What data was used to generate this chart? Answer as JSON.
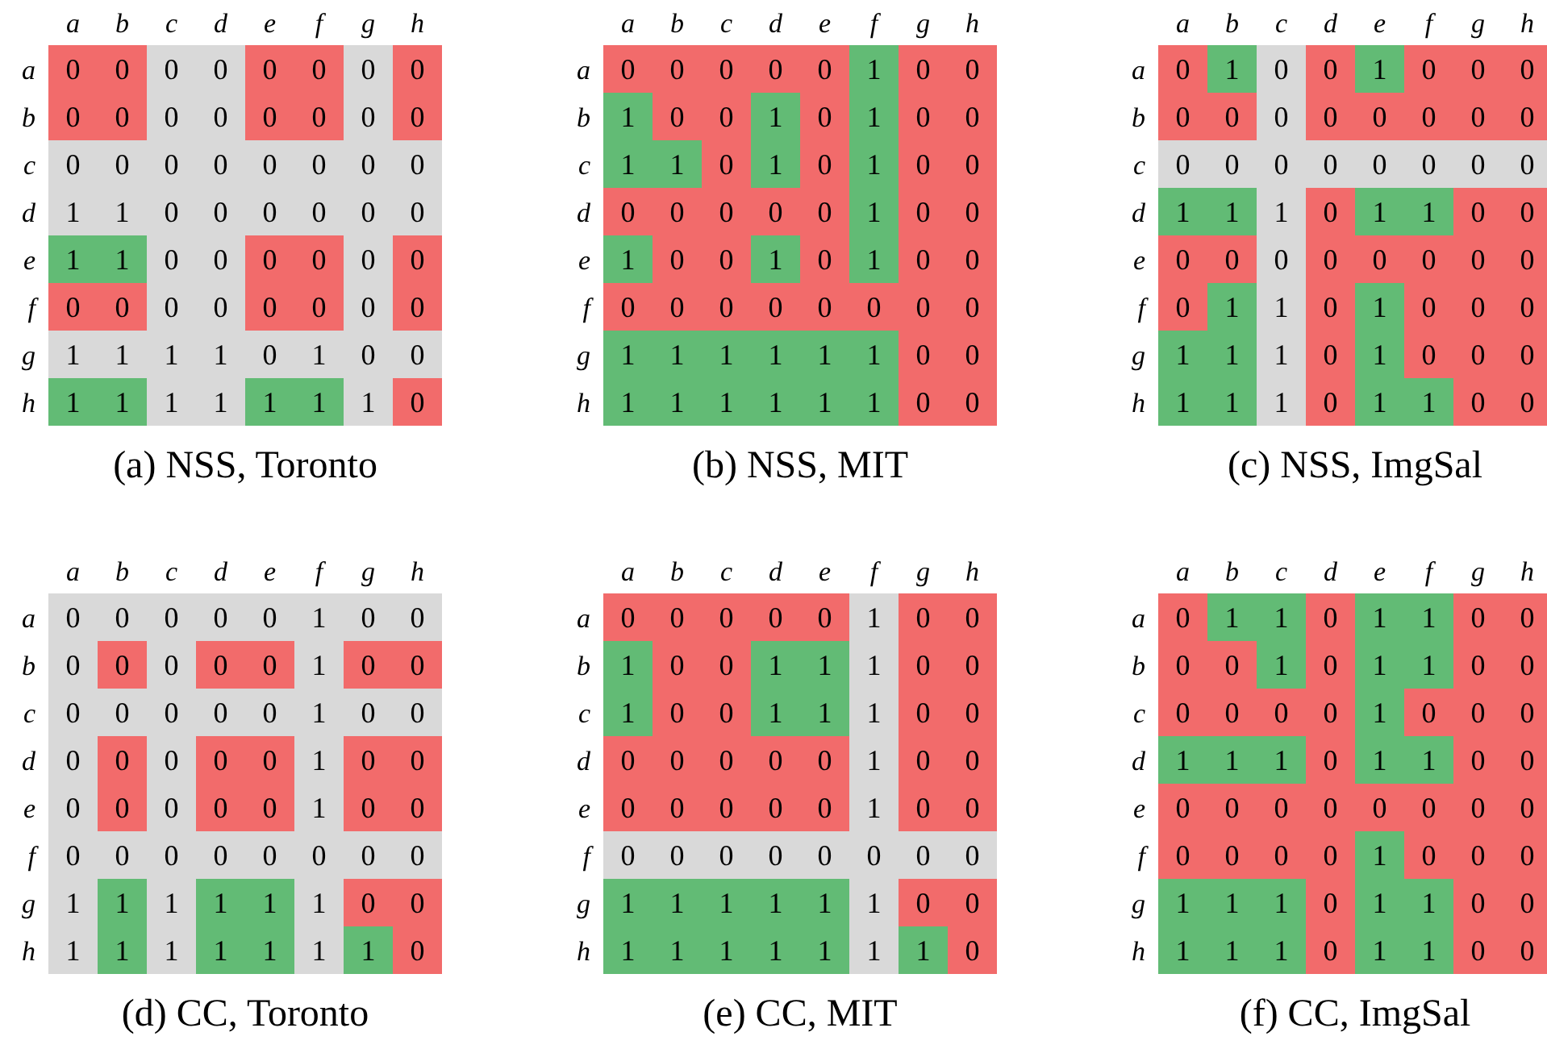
{
  "chart_data": [
    {
      "type": "heatmap",
      "title": "(a) NSS, Toronto",
      "data_labels": true,
      "categories": [
        "a",
        "b",
        "c",
        "d",
        "e",
        "f",
        "g",
        "h"
      ],
      "y_categories": [
        "a",
        "b",
        "c",
        "d",
        "e",
        "f",
        "g",
        "h"
      ],
      "cells": [
        [
          0,
          0,
          0,
          0,
          0,
          0,
          0,
          0
        ],
        [
          0,
          0,
          0,
          0,
          0,
          0,
          0,
          0
        ],
        [
          0,
          0,
          0,
          0,
          0,
          0,
          0,
          0
        ],
        [
          1,
          1,
          0,
          0,
          0,
          0,
          0,
          0
        ],
        [
          1,
          1,
          0,
          0,
          0,
          0,
          0,
          0
        ],
        [
          0,
          0,
          0,
          0,
          0,
          0,
          0,
          0
        ],
        [
          1,
          1,
          1,
          1,
          0,
          1,
          0,
          0
        ],
        [
          1,
          1,
          1,
          1,
          1,
          1,
          1,
          0
        ]
      ],
      "colors": [
        [
          "#f26b6b",
          "#f26b6b",
          "#d9d9d9",
          "#d9d9d9",
          "#f26b6b",
          "#f26b6b",
          "#d9d9d9",
          "#f26b6b"
        ],
        [
          "#f26b6b",
          "#f26b6b",
          "#d9d9d9",
          "#d9d9d9",
          "#f26b6b",
          "#f26b6b",
          "#d9d9d9",
          "#f26b6b"
        ],
        [
          "#d9d9d9",
          "#d9d9d9",
          "#d9d9d9",
          "#d9d9d9",
          "#d9d9d9",
          "#d9d9d9",
          "#d9d9d9",
          "#d9d9d9"
        ],
        [
          "#d9d9d9",
          "#d9d9d9",
          "#d9d9d9",
          "#d9d9d9",
          "#d9d9d9",
          "#d9d9d9",
          "#d9d9d9",
          "#d9d9d9"
        ],
        [
          "#62bb75",
          "#62bb75",
          "#d9d9d9",
          "#d9d9d9",
          "#f26b6b",
          "#f26b6b",
          "#d9d9d9",
          "#f26b6b"
        ],
        [
          "#f26b6b",
          "#f26b6b",
          "#d9d9d9",
          "#d9d9d9",
          "#f26b6b",
          "#f26b6b",
          "#d9d9d9",
          "#f26b6b"
        ],
        [
          "#d9d9d9",
          "#d9d9d9",
          "#d9d9d9",
          "#d9d9d9",
          "#d9d9d9",
          "#d9d9d9",
          "#d9d9d9",
          "#d9d9d9"
        ],
        [
          "#62bb75",
          "#62bb75",
          "#d9d9d9",
          "#d9d9d9",
          "#62bb75",
          "#62bb75",
          "#d9d9d9",
          "#f26b6b"
        ]
      ]
    },
    {
      "type": "heatmap",
      "title": "(b) NSS, MIT",
      "data_labels": true,
      "categories": [
        "a",
        "b",
        "c",
        "d",
        "e",
        "f",
        "g",
        "h"
      ],
      "y_categories": [
        "a",
        "b",
        "c",
        "d",
        "e",
        "f",
        "g",
        "h"
      ],
      "cells": [
        [
          0,
          0,
          0,
          0,
          0,
          1,
          0,
          0
        ],
        [
          1,
          0,
          0,
          1,
          0,
          1,
          0,
          0
        ],
        [
          1,
          1,
          0,
          1,
          0,
          1,
          0,
          0
        ],
        [
          0,
          0,
          0,
          0,
          0,
          1,
          0,
          0
        ],
        [
          1,
          0,
          0,
          1,
          0,
          1,
          0,
          0
        ],
        [
          0,
          0,
          0,
          0,
          0,
          0,
          0,
          0
        ],
        [
          1,
          1,
          1,
          1,
          1,
          1,
          0,
          0
        ],
        [
          1,
          1,
          1,
          1,
          1,
          1,
          0,
          0
        ]
      ],
      "colors": [
        [
          "#f26b6b",
          "#f26b6b",
          "#f26b6b",
          "#f26b6b",
          "#f26b6b",
          "#62bb75",
          "#f26b6b",
          "#f26b6b"
        ],
        [
          "#62bb75",
          "#f26b6b",
          "#f26b6b",
          "#62bb75",
          "#f26b6b",
          "#62bb75",
          "#f26b6b",
          "#f26b6b"
        ],
        [
          "#62bb75",
          "#62bb75",
          "#f26b6b",
          "#62bb75",
          "#f26b6b",
          "#62bb75",
          "#f26b6b",
          "#f26b6b"
        ],
        [
          "#f26b6b",
          "#f26b6b",
          "#f26b6b",
          "#f26b6b",
          "#f26b6b",
          "#62bb75",
          "#f26b6b",
          "#f26b6b"
        ],
        [
          "#62bb75",
          "#f26b6b",
          "#f26b6b",
          "#62bb75",
          "#f26b6b",
          "#62bb75",
          "#f26b6b",
          "#f26b6b"
        ],
        [
          "#f26b6b",
          "#f26b6b",
          "#f26b6b",
          "#f26b6b",
          "#f26b6b",
          "#f26b6b",
          "#f26b6b",
          "#f26b6b"
        ],
        [
          "#62bb75",
          "#62bb75",
          "#62bb75",
          "#62bb75",
          "#62bb75",
          "#62bb75",
          "#f26b6b",
          "#f26b6b"
        ],
        [
          "#62bb75",
          "#62bb75",
          "#62bb75",
          "#62bb75",
          "#62bb75",
          "#62bb75",
          "#f26b6b",
          "#f26b6b"
        ]
      ]
    },
    {
      "type": "heatmap",
      "title": "(c) NSS, ImgSal",
      "data_labels": true,
      "categories": [
        "a",
        "b",
        "c",
        "d",
        "e",
        "f",
        "g",
        "h"
      ],
      "y_categories": [
        "a",
        "b",
        "c",
        "d",
        "e",
        "f",
        "g",
        "h"
      ],
      "cells": [
        [
          0,
          1,
          0,
          0,
          1,
          0,
          0,
          0
        ],
        [
          0,
          0,
          0,
          0,
          0,
          0,
          0,
          0
        ],
        [
          0,
          0,
          0,
          0,
          0,
          0,
          0,
          0
        ],
        [
          1,
          1,
          1,
          0,
          1,
          1,
          0,
          0
        ],
        [
          0,
          0,
          0,
          0,
          0,
          0,
          0,
          0
        ],
        [
          0,
          1,
          1,
          0,
          1,
          0,
          0,
          0
        ],
        [
          1,
          1,
          1,
          0,
          1,
          0,
          0,
          0
        ],
        [
          1,
          1,
          1,
          0,
          1,
          1,
          0,
          0
        ]
      ],
      "colors": [
        [
          "#f26b6b",
          "#62bb75",
          "#d9d9d9",
          "#f26b6b",
          "#62bb75",
          "#f26b6b",
          "#f26b6b",
          "#f26b6b"
        ],
        [
          "#f26b6b",
          "#f26b6b",
          "#d9d9d9",
          "#f26b6b",
          "#f26b6b",
          "#f26b6b",
          "#f26b6b",
          "#f26b6b"
        ],
        [
          "#d9d9d9",
          "#d9d9d9",
          "#d9d9d9",
          "#d9d9d9",
          "#d9d9d9",
          "#d9d9d9",
          "#d9d9d9",
          "#d9d9d9"
        ],
        [
          "#62bb75",
          "#62bb75",
          "#d9d9d9",
          "#f26b6b",
          "#62bb75",
          "#62bb75",
          "#f26b6b",
          "#f26b6b"
        ],
        [
          "#f26b6b",
          "#f26b6b",
          "#d9d9d9",
          "#f26b6b",
          "#f26b6b",
          "#f26b6b",
          "#f26b6b",
          "#f26b6b"
        ],
        [
          "#f26b6b",
          "#62bb75",
          "#d9d9d9",
          "#f26b6b",
          "#62bb75",
          "#f26b6b",
          "#f26b6b",
          "#f26b6b"
        ],
        [
          "#62bb75",
          "#62bb75",
          "#d9d9d9",
          "#f26b6b",
          "#62bb75",
          "#f26b6b",
          "#f26b6b",
          "#f26b6b"
        ],
        [
          "#62bb75",
          "#62bb75",
          "#d9d9d9",
          "#f26b6b",
          "#62bb75",
          "#62bb75",
          "#f26b6b",
          "#f26b6b"
        ]
      ]
    },
    {
      "type": "heatmap",
      "title": "(d) CC, Toronto",
      "data_labels": true,
      "categories": [
        "a",
        "b",
        "c",
        "d",
        "e",
        "f",
        "g",
        "h"
      ],
      "y_categories": [
        "a",
        "b",
        "c",
        "d",
        "e",
        "f",
        "g",
        "h"
      ],
      "cells": [
        [
          0,
          0,
          0,
          0,
          0,
          1,
          0,
          0
        ],
        [
          0,
          0,
          0,
          0,
          0,
          1,
          0,
          0
        ],
        [
          0,
          0,
          0,
          0,
          0,
          1,
          0,
          0
        ],
        [
          0,
          0,
          0,
          0,
          0,
          1,
          0,
          0
        ],
        [
          0,
          0,
          0,
          0,
          0,
          1,
          0,
          0
        ],
        [
          0,
          0,
          0,
          0,
          0,
          0,
          0,
          0
        ],
        [
          1,
          1,
          1,
          1,
          1,
          1,
          0,
          0
        ],
        [
          1,
          1,
          1,
          1,
          1,
          1,
          1,
          0
        ]
      ],
      "colors": [
        [
          "#d9d9d9",
          "#d9d9d9",
          "#d9d9d9",
          "#d9d9d9",
          "#d9d9d9",
          "#d9d9d9",
          "#d9d9d9",
          "#d9d9d9"
        ],
        [
          "#d9d9d9",
          "#f26b6b",
          "#d9d9d9",
          "#f26b6b",
          "#f26b6b",
          "#d9d9d9",
          "#f26b6b",
          "#f26b6b"
        ],
        [
          "#d9d9d9",
          "#d9d9d9",
          "#d9d9d9",
          "#d9d9d9",
          "#d9d9d9",
          "#d9d9d9",
          "#d9d9d9",
          "#d9d9d9"
        ],
        [
          "#d9d9d9",
          "#f26b6b",
          "#d9d9d9",
          "#f26b6b",
          "#f26b6b",
          "#d9d9d9",
          "#f26b6b",
          "#f26b6b"
        ],
        [
          "#d9d9d9",
          "#f26b6b",
          "#d9d9d9",
          "#f26b6b",
          "#f26b6b",
          "#d9d9d9",
          "#f26b6b",
          "#f26b6b"
        ],
        [
          "#d9d9d9",
          "#d9d9d9",
          "#d9d9d9",
          "#d9d9d9",
          "#d9d9d9",
          "#d9d9d9",
          "#d9d9d9",
          "#d9d9d9"
        ],
        [
          "#d9d9d9",
          "#62bb75",
          "#d9d9d9",
          "#62bb75",
          "#62bb75",
          "#d9d9d9",
          "#f26b6b",
          "#f26b6b"
        ],
        [
          "#d9d9d9",
          "#62bb75",
          "#d9d9d9",
          "#62bb75",
          "#62bb75",
          "#d9d9d9",
          "#62bb75",
          "#f26b6b"
        ]
      ]
    },
    {
      "type": "heatmap",
      "title": "(e) CC, MIT",
      "data_labels": true,
      "categories": [
        "a",
        "b",
        "c",
        "d",
        "e",
        "f",
        "g",
        "h"
      ],
      "y_categories": [
        "a",
        "b",
        "c",
        "d",
        "e",
        "f",
        "g",
        "h"
      ],
      "cells": [
        [
          0,
          0,
          0,
          0,
          0,
          1,
          0,
          0
        ],
        [
          1,
          0,
          0,
          1,
          1,
          1,
          0,
          0
        ],
        [
          1,
          0,
          0,
          1,
          1,
          1,
          0,
          0
        ],
        [
          0,
          0,
          0,
          0,
          0,
          1,
          0,
          0
        ],
        [
          0,
          0,
          0,
          0,
          0,
          1,
          0,
          0
        ],
        [
          0,
          0,
          0,
          0,
          0,
          0,
          0,
          0
        ],
        [
          1,
          1,
          1,
          1,
          1,
          1,
          0,
          0
        ],
        [
          1,
          1,
          1,
          1,
          1,
          1,
          1,
          0
        ]
      ],
      "colors": [
        [
          "#f26b6b",
          "#f26b6b",
          "#f26b6b",
          "#f26b6b",
          "#f26b6b",
          "#d9d9d9",
          "#f26b6b",
          "#f26b6b"
        ],
        [
          "#62bb75",
          "#f26b6b",
          "#f26b6b",
          "#62bb75",
          "#62bb75",
          "#d9d9d9",
          "#f26b6b",
          "#f26b6b"
        ],
        [
          "#62bb75",
          "#f26b6b",
          "#f26b6b",
          "#62bb75",
          "#62bb75",
          "#d9d9d9",
          "#f26b6b",
          "#f26b6b"
        ],
        [
          "#f26b6b",
          "#f26b6b",
          "#f26b6b",
          "#f26b6b",
          "#f26b6b",
          "#d9d9d9",
          "#f26b6b",
          "#f26b6b"
        ],
        [
          "#f26b6b",
          "#f26b6b",
          "#f26b6b",
          "#f26b6b",
          "#f26b6b",
          "#d9d9d9",
          "#f26b6b",
          "#f26b6b"
        ],
        [
          "#d9d9d9",
          "#d9d9d9",
          "#d9d9d9",
          "#d9d9d9",
          "#d9d9d9",
          "#d9d9d9",
          "#d9d9d9",
          "#d9d9d9"
        ],
        [
          "#62bb75",
          "#62bb75",
          "#62bb75",
          "#62bb75",
          "#62bb75",
          "#d9d9d9",
          "#f26b6b",
          "#f26b6b"
        ],
        [
          "#62bb75",
          "#62bb75",
          "#62bb75",
          "#62bb75",
          "#62bb75",
          "#d9d9d9",
          "#62bb75",
          "#f26b6b"
        ]
      ]
    },
    {
      "type": "heatmap",
      "title": "(f) CC, ImgSal",
      "data_labels": true,
      "categories": [
        "a",
        "b",
        "c",
        "d",
        "e",
        "f",
        "g",
        "h"
      ],
      "y_categories": [
        "a",
        "b",
        "c",
        "d",
        "e",
        "f",
        "g",
        "h"
      ],
      "cells": [
        [
          0,
          1,
          1,
          0,
          1,
          1,
          0,
          0
        ],
        [
          0,
          0,
          1,
          0,
          1,
          1,
          0,
          0
        ],
        [
          0,
          0,
          0,
          0,
          1,
          0,
          0,
          0
        ],
        [
          1,
          1,
          1,
          0,
          1,
          1,
          0,
          0
        ],
        [
          0,
          0,
          0,
          0,
          0,
          0,
          0,
          0
        ],
        [
          0,
          0,
          0,
          0,
          1,
          0,
          0,
          0
        ],
        [
          1,
          1,
          1,
          0,
          1,
          1,
          0,
          0
        ],
        [
          1,
          1,
          1,
          0,
          1,
          1,
          0,
          0
        ]
      ],
      "colors": [
        [
          "#f26b6b",
          "#62bb75",
          "#62bb75",
          "#f26b6b",
          "#62bb75",
          "#62bb75",
          "#f26b6b",
          "#f26b6b"
        ],
        [
          "#f26b6b",
          "#f26b6b",
          "#62bb75",
          "#f26b6b",
          "#62bb75",
          "#62bb75",
          "#f26b6b",
          "#f26b6b"
        ],
        [
          "#f26b6b",
          "#f26b6b",
          "#f26b6b",
          "#f26b6b",
          "#62bb75",
          "#f26b6b",
          "#f26b6b",
          "#f26b6b"
        ],
        [
          "#62bb75",
          "#62bb75",
          "#62bb75",
          "#f26b6b",
          "#62bb75",
          "#62bb75",
          "#f26b6b",
          "#f26b6b"
        ],
        [
          "#f26b6b",
          "#f26b6b",
          "#f26b6b",
          "#f26b6b",
          "#f26b6b",
          "#f26b6b",
          "#f26b6b",
          "#f26b6b"
        ],
        [
          "#f26b6b",
          "#f26b6b",
          "#f26b6b",
          "#f26b6b",
          "#62bb75",
          "#f26b6b",
          "#f26b6b",
          "#f26b6b"
        ],
        [
          "#62bb75",
          "#62bb75",
          "#62bb75",
          "#f26b6b",
          "#62bb75",
          "#62bb75",
          "#f26b6b",
          "#f26b6b"
        ],
        [
          "#62bb75",
          "#62bb75",
          "#62bb75",
          "#f26b6b",
          "#62bb75",
          "#62bb75",
          "#f26b6b",
          "#f26b6b"
        ]
      ]
    }
  ]
}
